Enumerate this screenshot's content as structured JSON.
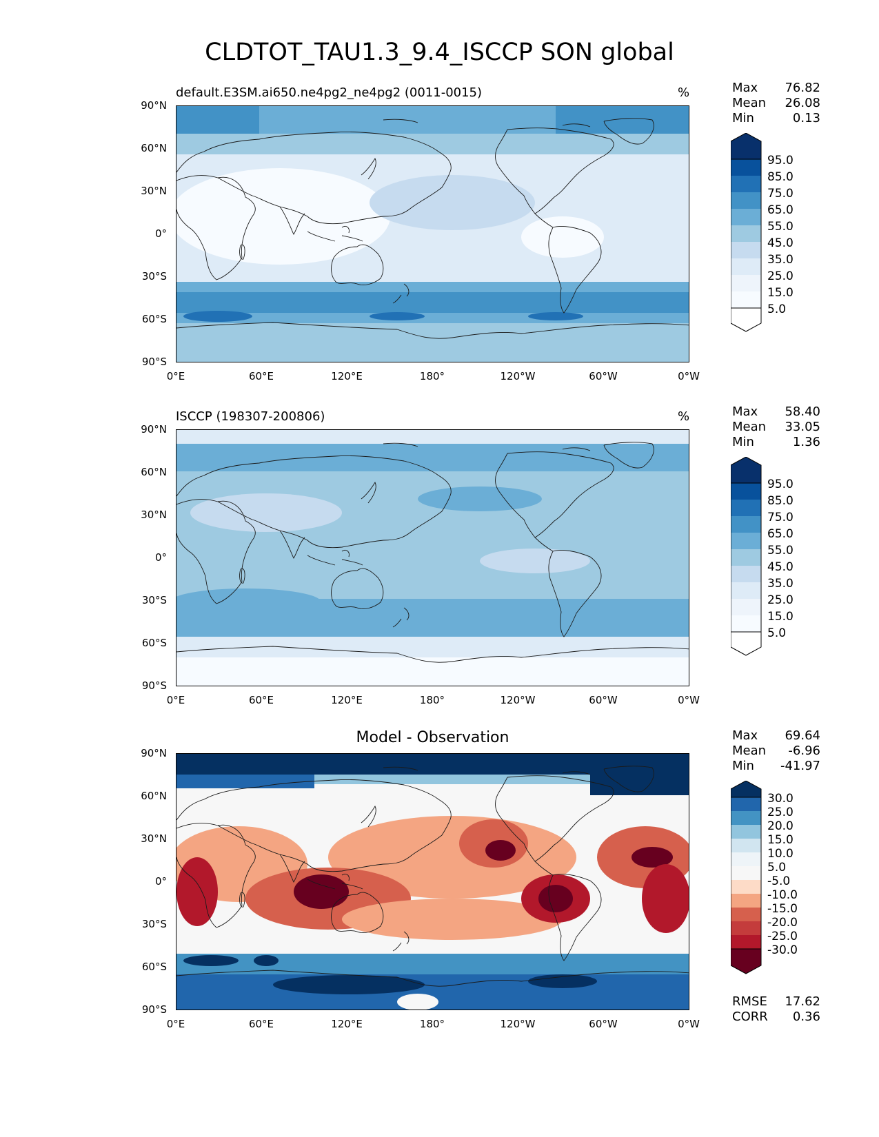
{
  "title": "CLDTOT_TAU1.3_9.4_ISCCP SON global",
  "lat_ticks": [
    "90°N",
    "60°N",
    "30°N",
    "0°",
    "30°S",
    "60°S",
    "90°S"
  ],
  "lon_ticks": [
    "0°E",
    "60°E",
    "120°E",
    "180°",
    "120°W",
    "60°W",
    "0°W"
  ],
  "panels": [
    {
      "title_left": "default.E3SM.ai650.ne4pg2_ne4pg2 (0011-0015)",
      "title_right": "%",
      "stats": {
        "max_label": "Max",
        "max": "76.82",
        "mean_label": "Mean",
        "mean": "26.08",
        "min_label": "Min",
        "min": "0.13"
      },
      "colorbar": [
        "95.0",
        "85.0",
        "75.0",
        "65.0",
        "55.0",
        "45.0",
        "35.0",
        "25.0",
        "15.0",
        "5.0"
      ]
    },
    {
      "title_left": "ISCCP (198307-200806)",
      "title_right": "%",
      "stats": {
        "max_label": "Max",
        "max": "58.40",
        "mean_label": "Mean",
        "mean": "33.05",
        "min_label": "Min",
        "min": "1.36"
      },
      "colorbar": [
        "95.0",
        "85.0",
        "75.0",
        "65.0",
        "55.0",
        "45.0",
        "35.0",
        "25.0",
        "15.0",
        "5.0"
      ]
    },
    {
      "title_center": "Model - Observation",
      "stats": {
        "max_label": "Max",
        "max": "69.64",
        "mean_label": "Mean",
        "mean": "-6.96",
        "min_label": "Min",
        "min": "-41.97"
      },
      "colorbar": [
        "30.0",
        "25.0",
        "20.0",
        "15.0",
        "10.0",
        "5.0",
        "-5.0",
        "-10.0",
        "-15.0",
        "-20.0",
        "-25.0",
        "-30.0"
      ],
      "metrics": {
        "rmse_label": "RMSE",
        "rmse": "17.62",
        "corr_label": "CORR",
        "corr": "0.36"
      }
    }
  ],
  "colors": {
    "blues": [
      "#f7fbff",
      "#deebf7",
      "#c6dbef",
      "#9ecae1",
      "#6baed6",
      "#4292c6",
      "#2171b5",
      "#08519c",
      "#08306b"
    ],
    "diverging": [
      "#67001f",
      "#b2182b",
      "#d6604d",
      "#f4a582",
      "#fddbc7",
      "#f7f7f7",
      "#d1e5f0",
      "#92c5de",
      "#4393c3",
      "#2166ac",
      "#053061"
    ]
  }
}
